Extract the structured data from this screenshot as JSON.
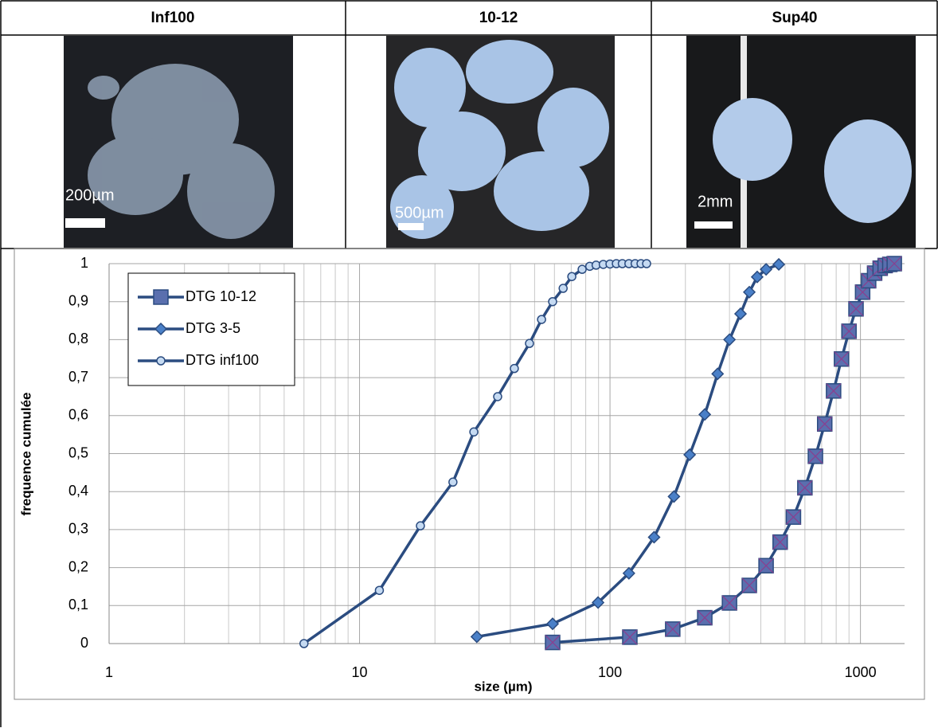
{
  "table": {
    "headers": [
      "Inf100",
      "10-12",
      "Sup40"
    ],
    "scale_labels": [
      "200µm",
      "500µm",
      "2mm"
    ]
  },
  "chart_data": {
    "type": "line",
    "x_label": "size (µm)",
    "y_label": "frequence cumulée",
    "log_x": true,
    "grid": true,
    "minor_grid": true,
    "legend": "top-left",
    "xlim": [
      1,
      1500
    ],
    "xticks": [
      1,
      10,
      100,
      1000
    ],
    "ylim": [
      0,
      1
    ],
    "yticks": [
      0,
      {
        "value": 0.1,
        "label": "0,1"
      },
      {
        "value": 0.2,
        "label": "0,2"
      },
      {
        "value": 0.3,
        "label": "0,3"
      },
      {
        "value": 0.4,
        "label": "0,4"
      },
      {
        "value": 0.5,
        "label": "0,5"
      },
      {
        "value": 0.6,
        "label": "0,6"
      },
      {
        "value": 0.7,
        "label": "0,7"
      },
      {
        "value": 0.8,
        "label": "0,8"
      },
      {
        "value": 0.9,
        "label": "0,9"
      },
      1
    ],
    "series": [
      {
        "name": "DTG 10-12",
        "color": "#2b4c80",
        "marker": "square",
        "marker_color": "#5a6fae",
        "x": [
          59,
          120,
          178,
          239,
          300,
          360,
          420,
          478,
          540,
          600,
          661,
          720,
          781,
          840,
          900,
          960,
          1020,
          1078,
          1139,
          1199,
          1255,
          1310,
          1365
        ],
        "values": [
          0.003,
          0.017,
          0.038,
          0.068,
          0.107,
          0.153,
          0.205,
          0.267,
          0.333,
          0.41,
          0.493,
          0.578,
          0.665,
          0.749,
          0.822,
          0.881,
          0.925,
          0.955,
          0.975,
          0.988,
          0.995,
          0.998,
          1
        ]
      },
      {
        "name": "DTG 3-5",
        "color": "#2b4c80",
        "marker": "diamond",
        "marker_color": "#4a80c8",
        "x": [
          29.4,
          59,
          89.6,
          119,
          150,
          180,
          208,
          239,
          269,
          300,
          332,
          360,
          387,
          420,
          472
        ],
        "values": [
          0.018,
          0.052,
          0.108,
          0.185,
          0.28,
          0.387,
          0.497,
          0.603,
          0.71,
          0.8,
          0.868,
          0.925,
          0.965,
          0.985,
          0.998
        ]
      },
      {
        "name": "DTG inf100",
        "color": "#2b4c80",
        "marker": "circle",
        "marker_color": "#c5daf2",
        "x": [
          6,
          12,
          17.5,
          23.6,
          28.6,
          35.6,
          41.5,
          47.7,
          53.3,
          59,
          65,
          70.4,
          77.4,
          83,
          88,
          94,
          100,
          106,
          112,
          119,
          126,
          133,
          140
        ],
        "values": [
          0,
          0.14,
          0.31,
          0.425,
          0.557,
          0.65,
          0.724,
          0.79,
          0.853,
          0.9,
          0.935,
          0.966,
          0.985,
          0.993,
          0.996,
          0.998,
          0.999,
          1,
          1,
          1,
          1,
          1,
          1
        ]
      }
    ]
  }
}
